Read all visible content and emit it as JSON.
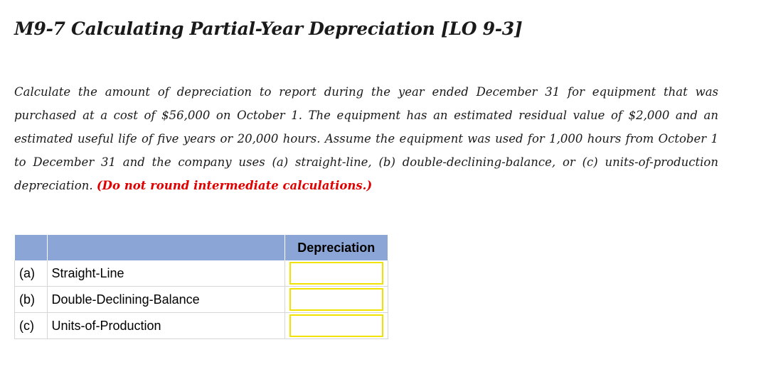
{
  "title": "M9-7 Calculating Partial-Year Depreciation [LO 9-3]",
  "prompt": {
    "text": "Calculate the amount of depreciation to report during the year ended December 31 for equipment that was purchased at a cost of $56,000 on October 1. The equipment has an estimated residual value of $2,000 and an estimated useful life of five years or 20,000 hours. Assume the equipment was used for 1,000 hours from October 1 to December 31 and the company uses (a) straight-line, (b) double-declining-balance, or (c) units-of-production depreciation.",
    "note": "(Do not round intermediate calculations.)"
  },
  "table": {
    "header": {
      "col1": "",
      "col2": "",
      "col3": "Depreciation"
    },
    "rows": [
      {
        "letter": "(a)",
        "method": "Straight-Line",
        "value": ""
      },
      {
        "letter": "(b)",
        "method": "Double-Declining-Balance",
        "value": ""
      },
      {
        "letter": "(c)",
        "method": "Units-of-Production",
        "value": ""
      }
    ]
  },
  "colors": {
    "header_bg": "#8ba6d6",
    "note_red": "#e00000",
    "input_border": "#f2e200"
  }
}
